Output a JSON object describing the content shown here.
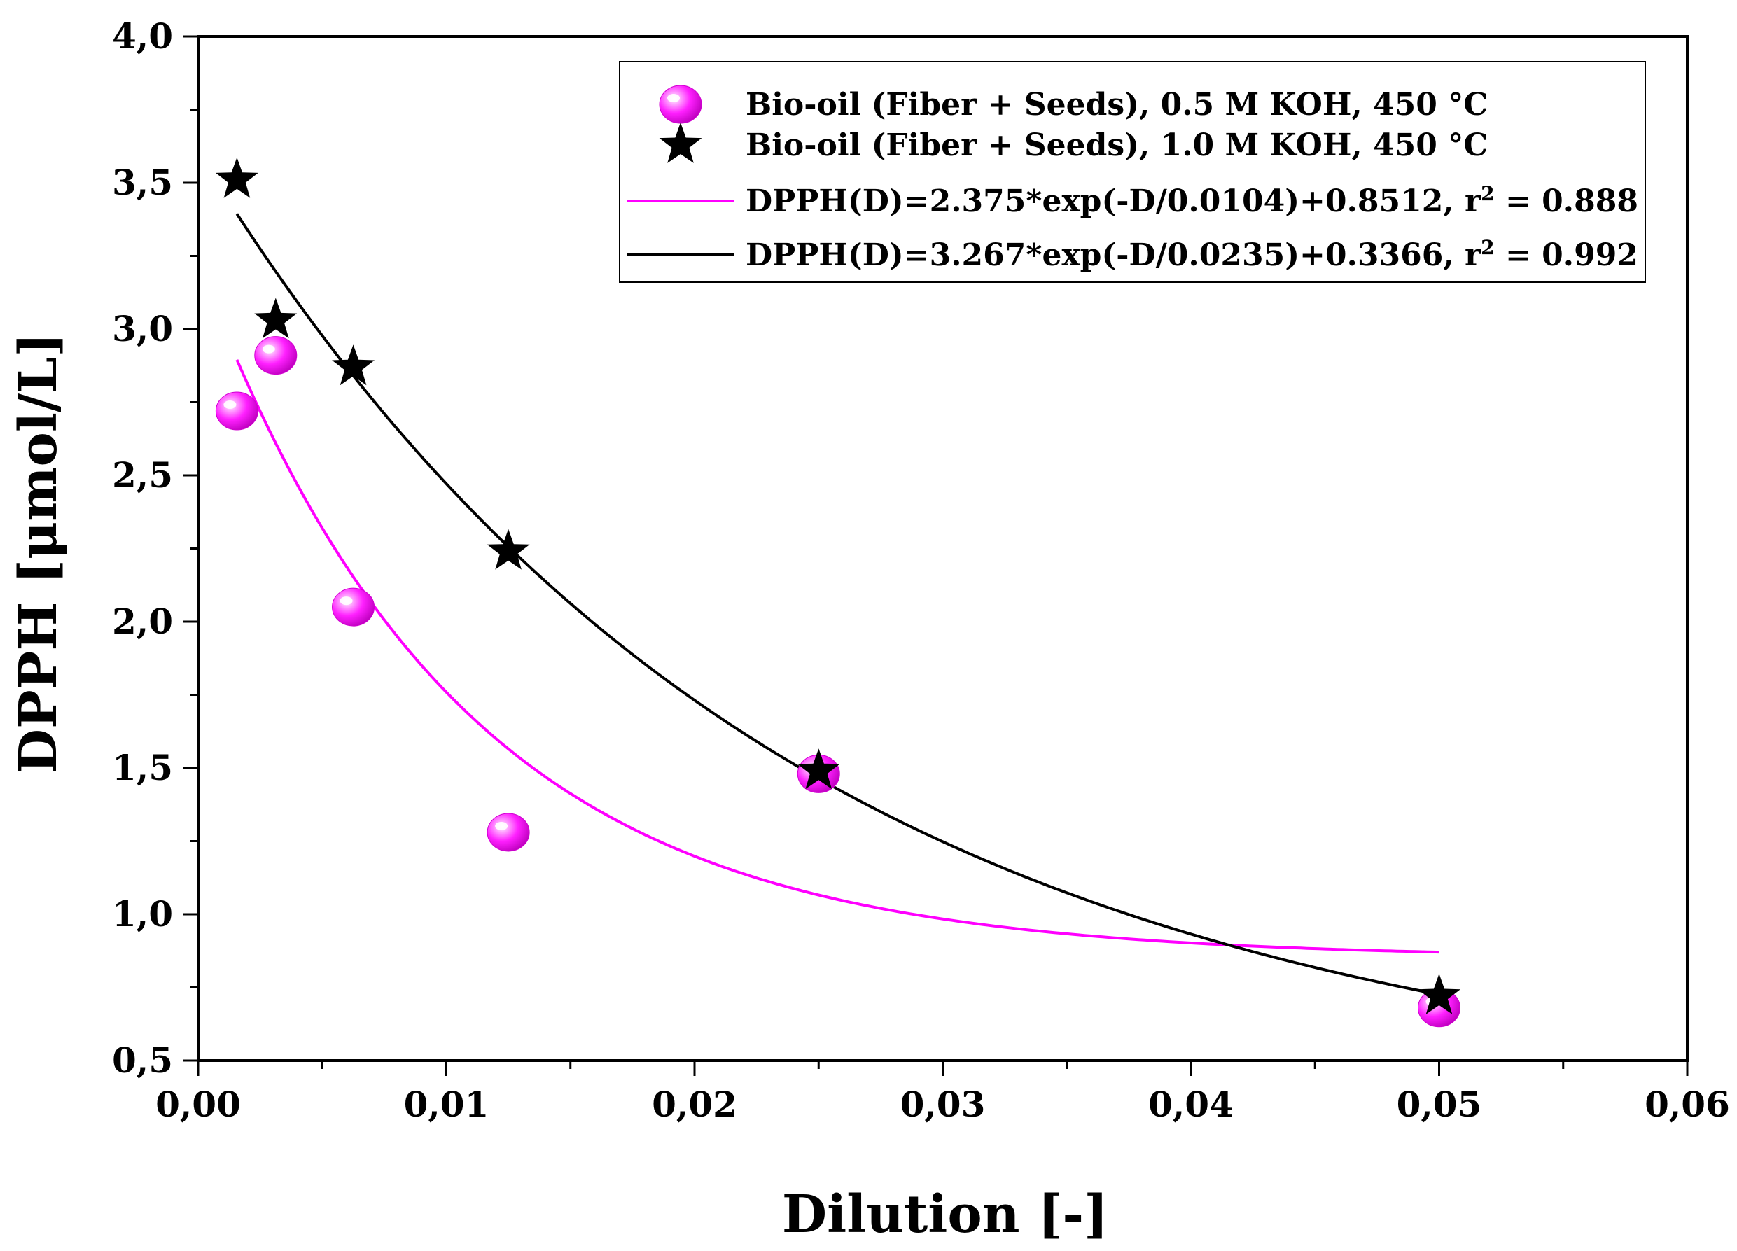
{
  "chart_data": {
    "type": "scatter",
    "xlabel": "Dilution [-]",
    "ylabel": "DPPH [μmol/L]",
    "xlim": [
      0,
      0.06
    ],
    "ylim": [
      0.5,
      4.0
    ],
    "x_ticks": [
      0,
      0.01,
      0.02,
      0.03,
      0.04,
      0.05,
      0.06
    ],
    "x_tick_labels": [
      "0,00",
      "0,01",
      "0,02",
      "0,03",
      "0,04",
      "0,05",
      "0,06"
    ],
    "y_ticks": [
      0.5,
      1.0,
      1.5,
      2.0,
      2.5,
      3.0,
      3.5,
      4.0
    ],
    "y_tick_labels": [
      "0,5",
      "1,0",
      "1,5",
      "2,0",
      "2,5",
      "3,0",
      "3,5",
      "4,0"
    ],
    "grid": false,
    "legend_position": "top-right",
    "series": [
      {
        "name": "Bio-oil (Fiber + Seeds), 0.5 M KOH, 450 °C",
        "marker": "sphere",
        "color": "#ff00ff",
        "x": [
          0.0015625,
          0.003125,
          0.00625,
          0.0125,
          0.025,
          0.05
        ],
        "y": [
          2.72,
          2.91,
          2.05,
          1.28,
          1.48,
          0.68
        ]
      },
      {
        "name": "Bio-oil (Fiber + Seeds), 1.0 M KOH, 450 °C",
        "marker": "star",
        "color": "#000000",
        "x": [
          0.0015625,
          0.003125,
          0.00625,
          0.0125,
          0.025,
          0.05
        ],
        "y": [
          3.51,
          3.03,
          2.87,
          2.24,
          1.49,
          0.72
        ]
      }
    ],
    "fits": [
      {
        "label": "DPPH(D)=2.375*exp(-D/0.0104)+0.8512, r",
        "sup": "2",
        "label_tail": " = 0.888",
        "color": "#ff00ff",
        "A": 2.375,
        "t": 0.0104,
        "y0": 0.8512,
        "x_range": [
          0.0015625,
          0.05
        ]
      },
      {
        "label": "DPPH(D)=3.267*exp(-D/0.0235)+0.3366, r",
        "sup": "2",
        "label_tail": " = 0.992",
        "color": "#000000",
        "A": 3.267,
        "t": 0.0235,
        "y0": 0.3366,
        "x_range": [
          0.0015625,
          0.05
        ]
      }
    ]
  }
}
